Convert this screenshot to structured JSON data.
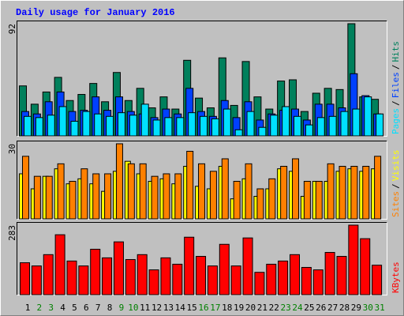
{
  "legend_separator": "/",
  "chart_data": [
    {
      "type": "bar",
      "title": "Daily usage for January 2016",
      "ylim": [
        0,
        92
      ],
      "yticks": [
        92
      ],
      "series": [
        {
          "name": "Hits",
          "color": "#00805c",
          "values": [
            41,
            26,
            36,
            48,
            29,
            34,
            43,
            28,
            52,
            29,
            39,
            23,
            32,
            22,
            62,
            31,
            23,
            64,
            25,
            61,
            32,
            22,
            45,
            46,
            20,
            35,
            39,
            38,
            92,
            32,
            30
          ]
        },
        {
          "name": "Files",
          "color": "#0040ff",
          "values": [
            20,
            18,
            28,
            36,
            20,
            21,
            32,
            21,
            32,
            20,
            18,
            15,
            22,
            18,
            39,
            20,
            16,
            29,
            15,
            28,
            13,
            18,
            21,
            22,
            13,
            26,
            26,
            23,
            51,
            33,
            18
          ]
        },
        {
          "name": "Pages",
          "color": "#00e0ff",
          "values": [
            16,
            15,
            17,
            24,
            12,
            20,
            18,
            16,
            19,
            17,
            26,
            13,
            15,
            15,
            19,
            16,
            14,
            22,
            5,
            20,
            7,
            17,
            24,
            16,
            9,
            15,
            16,
            20,
            22,
            32,
            18
          ]
        }
      ]
    },
    {
      "type": "bar",
      "ylim": [
        0,
        30
      ],
      "yticks": [
        30
      ],
      "series": [
        {
          "name": "Visits",
          "color": "#ffff00",
          "values": [
            18,
            12,
            17,
            20,
            14,
            16,
            14,
            11,
            19,
            23,
            18,
            15,
            16,
            14,
            21,
            13,
            12,
            21,
            8,
            16,
            9,
            12,
            20,
            19,
            9,
            15,
            15,
            19,
            20,
            19,
            20
          ]
        },
        {
          "name": "Sites",
          "color": "#ff8000",
          "values": [
            25,
            17,
            17,
            22,
            15,
            20,
            18,
            18,
            30,
            22,
            22,
            17,
            18,
            18,
            27,
            22,
            19,
            24,
            15,
            22,
            12,
            16,
            21,
            24,
            15,
            15,
            22,
            21,
            21,
            21,
            25
          ]
        }
      ]
    },
    {
      "type": "bar",
      "ylim": [
        0,
        283
      ],
      "yticks": [
        283
      ],
      "series": [
        {
          "name": "KBytes",
          "color": "#ff0000",
          "values": [
            130,
            117,
            163,
            244,
            137,
            117,
            185,
            150,
            215,
            143,
            163,
            101,
            150,
            124,
            234,
            156,
            117,
            205,
            117,
            231,
            91,
            124,
            137,
            163,
            111,
            101,
            172,
            156,
            283,
            228,
            120
          ]
        }
      ],
      "categories": [
        "1",
        "2",
        "3",
        "4",
        "5",
        "6",
        "7",
        "8",
        "9",
        "10",
        "11",
        "12",
        "13",
        "14",
        "15",
        "16",
        "17",
        "18",
        "19",
        "20",
        "21",
        "22",
        "23",
        "24",
        "25",
        "26",
        "27",
        "28",
        "29",
        "30",
        "31"
      ],
      "category_colors": [
        "#000000",
        "#008000",
        "#008000",
        "#000000",
        "#000000",
        "#000000",
        "#000000",
        "#000000",
        "#008000",
        "#008000",
        "#000000",
        "#000000",
        "#000000",
        "#000000",
        "#000000",
        "#008000",
        "#008000",
        "#000000",
        "#000000",
        "#000000",
        "#000000",
        "#000000",
        "#008000",
        "#008000",
        "#000000",
        "#000000",
        "#000000",
        "#000000",
        "#000000",
        "#008000",
        "#008000"
      ]
    }
  ]
}
